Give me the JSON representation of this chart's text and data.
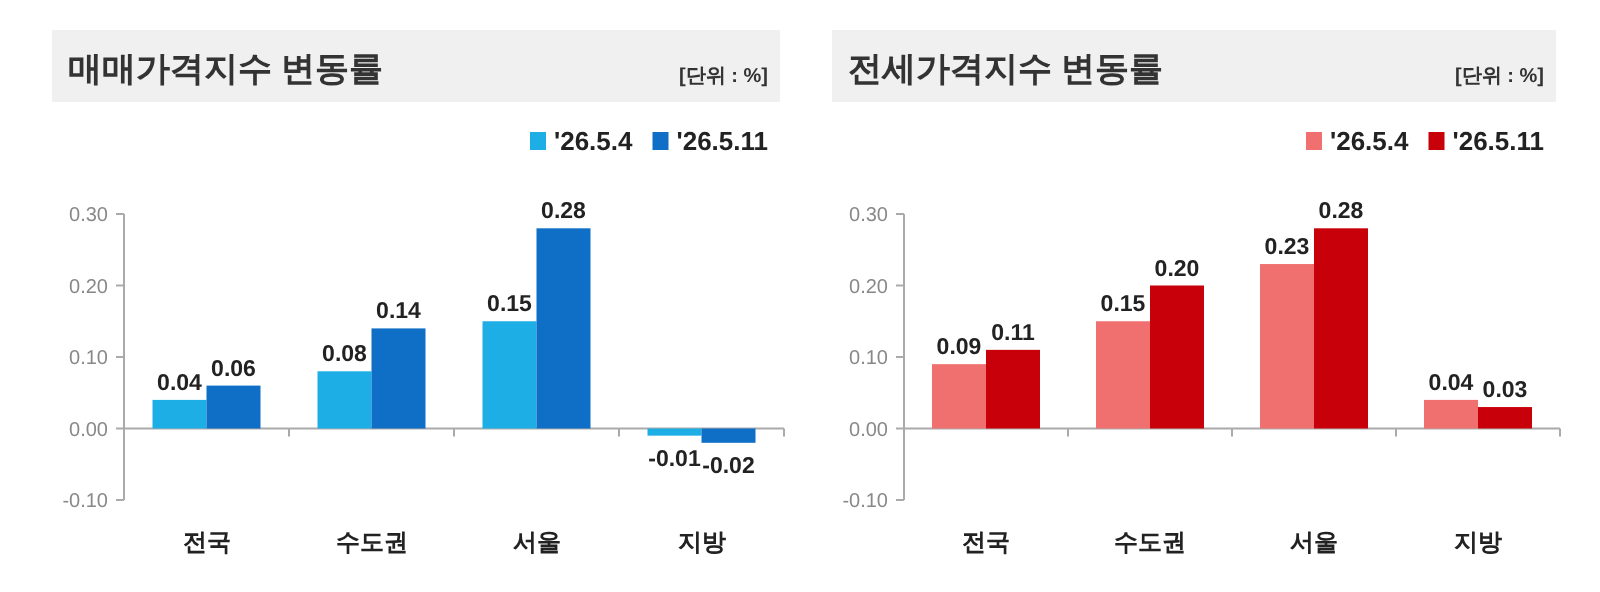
{
  "chart_data": [
    {
      "type": "bar",
      "title": "매매가격지수 변동률",
      "annotations": [
        "[단위 : %]"
      ],
      "categories": [
        "전국",
        "수도권",
        "서울",
        "지방"
      ],
      "series": [
        {
          "name": "'26.5.4",
          "color": "#1eaee6",
          "values": [
            0.04,
            0.08,
            0.15,
            -0.01
          ],
          "value_labels": [
            "0.04",
            "0.08",
            "0.15",
            "-0.01"
          ]
        },
        {
          "name": "'26.5.11",
          "color": "#0f6fc6",
          "values": [
            0.06,
            0.14,
            0.28,
            -0.02
          ],
          "value_labels": [
            "0.06",
            "0.14",
            "0.28",
            "-0.02"
          ]
        }
      ],
      "ylim": [
        -0.1,
        0.3
      ],
      "yticks": [
        {
          "value": -0.1,
          "label": "-0.10"
        },
        {
          "value": 0,
          "label": "0.00"
        },
        {
          "value": 0.1,
          "label": "0.10"
        },
        {
          "value": 0.2,
          "label": "0.20"
        },
        {
          "value": 0.3,
          "label": "0.30"
        }
      ],
      "legend": "top right"
    },
    {
      "type": "bar",
      "title": "전세가격지수 변동률",
      "annotations": [
        "[단위 : %]"
      ],
      "categories": [
        "전국",
        "수도권",
        "서울",
        "지방"
      ],
      "series": [
        {
          "name": "'26.5.4",
          "color": "#f07070",
          "values": [
            0.09,
            0.15,
            0.23,
            0.04
          ],
          "value_labels": [
            "0.09",
            "0.15",
            "0.23",
            "0.04"
          ]
        },
        {
          "name": "'26.5.11",
          "color": "#c8000a",
          "values": [
            0.11,
            0.2,
            0.28,
            0.03
          ],
          "value_labels": [
            "0.11",
            "0.20",
            "0.28",
            "0.03"
          ]
        }
      ],
      "ylim": [
        -0.1,
        0.3
      ],
      "yticks": [
        {
          "value": -0.1,
          "label": "-0.10"
        },
        {
          "value": 0,
          "label": "0.00"
        },
        {
          "value": 0.1,
          "label": "0.10"
        },
        {
          "value": 0.2,
          "label": "0.20"
        },
        {
          "value": 0.3,
          "label": "0.30"
        }
      ],
      "legend": "top right"
    }
  ]
}
